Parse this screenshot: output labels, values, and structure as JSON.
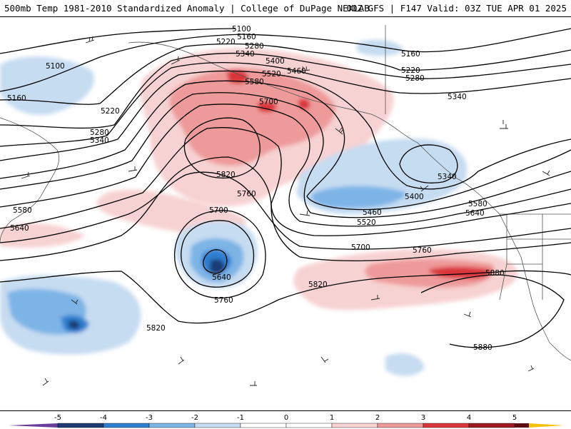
{
  "header": {
    "title_left": "500mb Temp 1981-2010 Standardized Anomaly | College of DuPage NEXLAB",
    "title_right": "00Z GFS | F147 Valid: 03Z TUE APR 01 2025"
  },
  "contour_labels": [
    "5100",
    "5160",
    "5220",
    "5280",
    "5340",
    "5400",
    "5460",
    "5520",
    "5580",
    "5640",
    "5700",
    "5760",
    "5820",
    "5880"
  ],
  "colorbar": {
    "ticks": [
      "-5",
      "-4",
      "-3",
      "-2",
      "-1",
      "0",
      "1",
      "2",
      "3",
      "4",
      "5"
    ],
    "colors": {
      "neg5": "#6a3d9a",
      "neg4": "#1f3b73",
      "neg3": "#2e7fd0",
      "neg2": "#7db4e6",
      "neg1": "#c6dcf1",
      "neutral": "#ffffff",
      "pos1": "#f7d2d2",
      "pos2": "#ee9a9a",
      "pos3": "#d9363b",
      "pos4": "#9e1b22",
      "pos5": "#5c0d14",
      "extreme": "#f4c20d"
    }
  }
}
